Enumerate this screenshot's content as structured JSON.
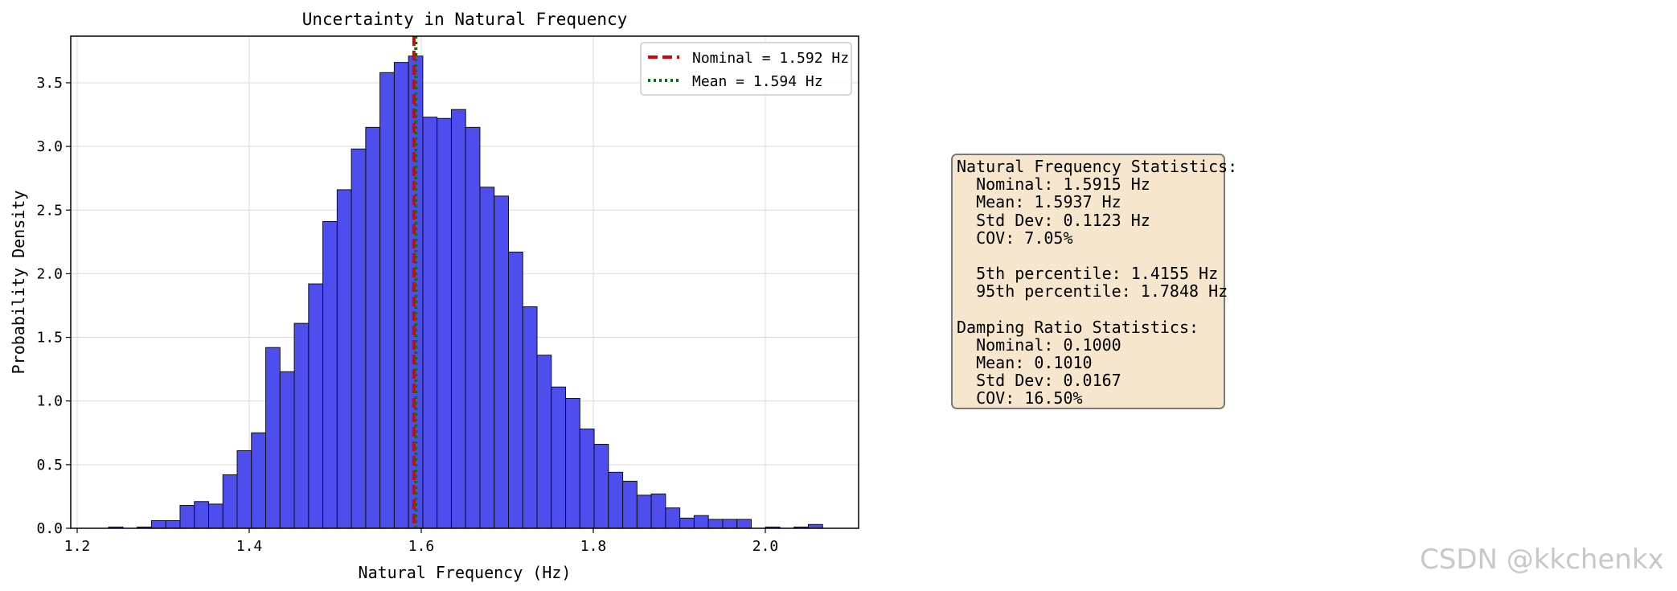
{
  "chart_data": {
    "type": "histogram",
    "title": "Uncertainty in Natural Frequency",
    "xlabel": "Natural Frequency (Hz)",
    "ylabel": "Probability Density",
    "xlim": [
      1.2,
      2.1
    ],
    "ylim": [
      0,
      3.88
    ],
    "xticks": [
      "1.2",
      "1.4",
      "1.6",
      "1.8",
      "2.0"
    ],
    "yticks": [
      "0.0",
      "0.5",
      "1.0",
      "1.5",
      "2.0",
      "2.5",
      "3.0",
      "3.5"
    ],
    "grid": true,
    "bar_color": "#4444ee",
    "bin_edges": [
      1.22,
      1.2366,
      1.2532,
      1.2698,
      1.2864,
      1.303,
      1.3196,
      1.3362,
      1.3528,
      1.3694,
      1.386,
      1.4026,
      1.4192,
      1.4358,
      1.4524,
      1.469,
      1.4856,
      1.5022,
      1.5188,
      1.5354,
      1.552,
      1.5686,
      1.5852,
      1.6018,
      1.6184,
      1.635,
      1.6516,
      1.6682,
      1.6848,
      1.7014,
      1.718,
      1.7346,
      1.7512,
      1.7678,
      1.7844,
      1.801,
      1.8176,
      1.8342,
      1.8508,
      1.8674,
      1.884,
      1.9006,
      1.9172,
      1.9338,
      1.9504,
      1.967,
      1.9836,
      2.0002,
      2.0168,
      2.0334,
      2.05,
      2.0666
    ],
    "values": [
      0.0,
      0.01,
      0.0,
      0.01,
      0.06,
      0.06,
      0.18,
      0.21,
      0.19,
      0.42,
      0.61,
      0.75,
      1.42,
      1.23,
      1.61,
      1.92,
      2.41,
      2.66,
      2.98,
      3.15,
      3.58,
      3.66,
      3.71,
      3.23,
      3.22,
      3.29,
      3.15,
      2.68,
      2.61,
      2.17,
      1.74,
      1.36,
      1.11,
      1.02,
      0.78,
      0.66,
      0.44,
      0.37,
      0.26,
      0.27,
      0.16,
      0.08,
      0.1,
      0.07,
      0.07,
      0.07,
      0.0,
      0.01,
      0.0,
      0.01,
      0.03
    ],
    "vlines": [
      {
        "label": "Nominal = 1.592 Hz",
        "x": 1.5915,
        "color": "#e00000",
        "style": "dashed"
      },
      {
        "label": "Mean = 1.594 Hz",
        "x": 1.5937,
        "color": "#007700",
        "style": "dotted"
      }
    ],
    "legend_position": "top-right"
  },
  "stats": {
    "lines": [
      "Natural Frequency Statistics:",
      "  Nominal: 1.5915 Hz",
      "  Mean: 1.5937 Hz",
      "  Std Dev: 0.1123 Hz",
      "  COV: 7.05%",
      "",
      "  5th percentile: 1.4155 Hz",
      "  95th percentile: 1.7848 Hz",
      "",
      "Damping Ratio Statistics:",
      "  Nominal: 0.1000",
      "  Mean: 0.1010",
      "  Std Dev: 0.0167",
      "  COV: 16.50%"
    ]
  },
  "watermark": "CSDN @kkchenkx"
}
